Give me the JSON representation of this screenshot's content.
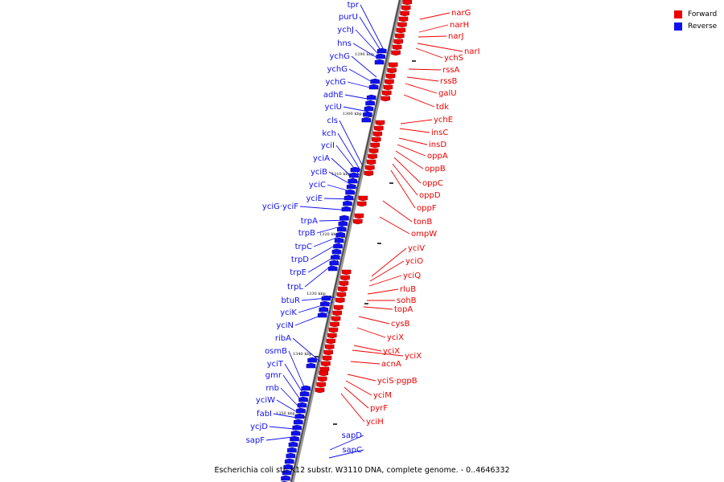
{
  "legend": {
    "forward": {
      "label": "Forward",
      "color": "#ee0000"
    },
    "reverse": {
      "label": "Reverse",
      "color": "#1010ee"
    }
  },
  "caption": "Escherichia coli str. K12 substr. W3110 DNA, complete genome. - 0..4646332",
  "ticks": [
    "1290 kbp",
    "1300 kbp",
    "1310 kbp",
    "1320 kbp",
    "1330 kbp",
    "1340 kbp",
    "1350 kbp"
  ],
  "reverse_genes": [
    "tpr",
    "purU",
    "ychJ",
    "hns",
    "ychG",
    "ychG",
    "ychG",
    "adhE",
    "yciU",
    "cls",
    "kch",
    "yciI",
    "yciA",
    "yciB",
    "yciC",
    "yciE",
    "yciG·yciF",
    "trpA",
    "trpB",
    "trpC",
    "trpD",
    "trpE",
    "trpL",
    "btuR",
    "yciK",
    "yciN",
    "ribA",
    "osmB",
    "yciT",
    "gmr",
    "rnb",
    "yciW",
    "fabI",
    "ycjD",
    "sapF",
    "sapD",
    "sapC"
  ],
  "forward_genes": [
    "narG",
    "narH",
    "narJ",
    "narI",
    "ychS",
    "rssA",
    "rssB",
    "galU",
    "tdk",
    "ychE",
    "insC",
    "insD",
    "oppA",
    "oppB",
    "oppC",
    "oppD",
    "oppF",
    "tonB",
    "ompW",
    "yciV",
    "yciO",
    "yciQ",
    "rluB",
    "sohB",
    "topA",
    "cysB",
    "yciX",
    "yciX",
    "yciX",
    "acnA",
    "yciS·pgpB",
    "yciM",
    "pyrF",
    "yciH"
  ]
}
